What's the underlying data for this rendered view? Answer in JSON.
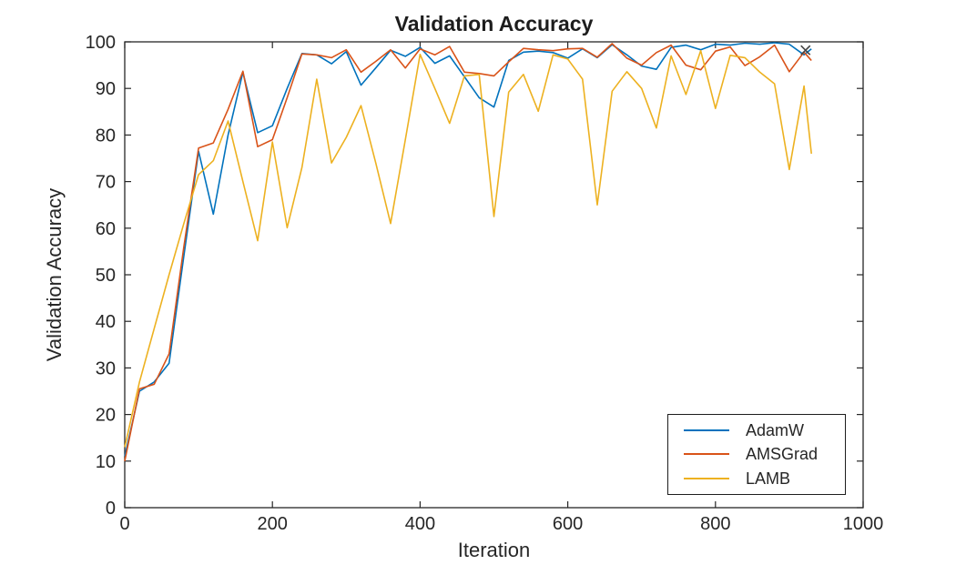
{
  "chart_data": {
    "type": "line",
    "title": "Validation Accuracy",
    "xlabel": "Iteration",
    "ylabel": "Validation Accuracy",
    "xlim": [
      0,
      1000
    ],
    "ylim": [
      0,
      100
    ],
    "xticks": [
      0,
      200,
      400,
      600,
      800,
      1000
    ],
    "yticks": [
      0,
      10,
      20,
      30,
      40,
      50,
      60,
      70,
      80,
      90,
      100
    ],
    "grid": false,
    "box": true,
    "tick_direction": "in",
    "axis_color": "#262626",
    "background_color": "#ffffff",
    "legend": {
      "location": "southeast",
      "border_color": "#1d1d1d",
      "entries": [
        "AdamW",
        "AMSGrad",
        "LAMB"
      ]
    },
    "x": [
      0,
      20,
      40,
      60,
      80,
      100,
      120,
      140,
      160,
      180,
      200,
      220,
      240,
      260,
      280,
      300,
      320,
      340,
      360,
      380,
      400,
      420,
      440,
      460,
      480,
      500,
      520,
      540,
      560,
      580,
      600,
      620,
      640,
      660,
      680,
      700,
      720,
      740,
      760,
      780,
      800,
      820,
      840,
      860,
      880,
      900,
      920,
      930
    ],
    "series": [
      {
        "name": "AdamW",
        "color": "#0072BD",
        "values": [
          11,
          25,
          27,
          31,
          54,
          76.5,
          63,
          80,
          93.5,
          80.5,
          82,
          90,
          97.5,
          97.2,
          95.3,
          97.9,
          90.7,
          94.4,
          98.2,
          96.9,
          98.8,
          95.4,
          97,
          92.5,
          88,
          86,
          96,
          97.8,
          98,
          97.7,
          96.5,
          98.5,
          96.6,
          99.4,
          97.2,
          94.8,
          94.1,
          98.8,
          99.3,
          98.3,
          99.5,
          99.3,
          99.7,
          99.5,
          99.8,
          99.5,
          97.2,
          98.5
        ]
      },
      {
        "name": "AMSGrad",
        "color": "#D95319",
        "values": [
          10,
          25.5,
          26.5,
          33,
          56,
          77.2,
          78.3,
          85.5,
          93.7,
          77.5,
          79,
          88,
          97.4,
          97.2,
          96.6,
          98.3,
          93.5,
          95.8,
          98.3,
          94.4,
          98.5,
          97.2,
          99,
          93.5,
          93.2,
          92.7,
          95.7,
          98.6,
          98.3,
          98.1,
          98.5,
          98.6,
          96.7,
          99.6,
          96.5,
          95,
          97.7,
          99.3,
          95,
          94,
          98,
          98.9,
          94.9,
          96.8,
          99.3,
          93.6,
          97.8,
          96
        ]
      },
      {
        "name": "LAMB",
        "color": "#EDB120",
        "values": [
          13,
          27,
          38.5,
          50,
          61,
          71.5,
          74.5,
          83,
          70,
          57.3,
          78.5,
          60.1,
          73,
          92,
          74,
          79.5,
          86.3,
          74,
          61,
          79,
          97.3,
          90,
          82.5,
          92.7,
          93,
          62.5,
          89.2,
          93,
          85.1,
          97.2,
          96.3,
          92,
          65,
          89.4,
          93.6,
          90,
          81.5,
          97,
          88.7,
          98.1,
          85.7,
          97.1,
          96.6,
          93.5,
          91,
          72.6,
          90.5,
          76
        ]
      }
    ],
    "final_marker": {
      "symbol": "x",
      "x": 922,
      "y": 98.2,
      "color": "#444444"
    }
  }
}
